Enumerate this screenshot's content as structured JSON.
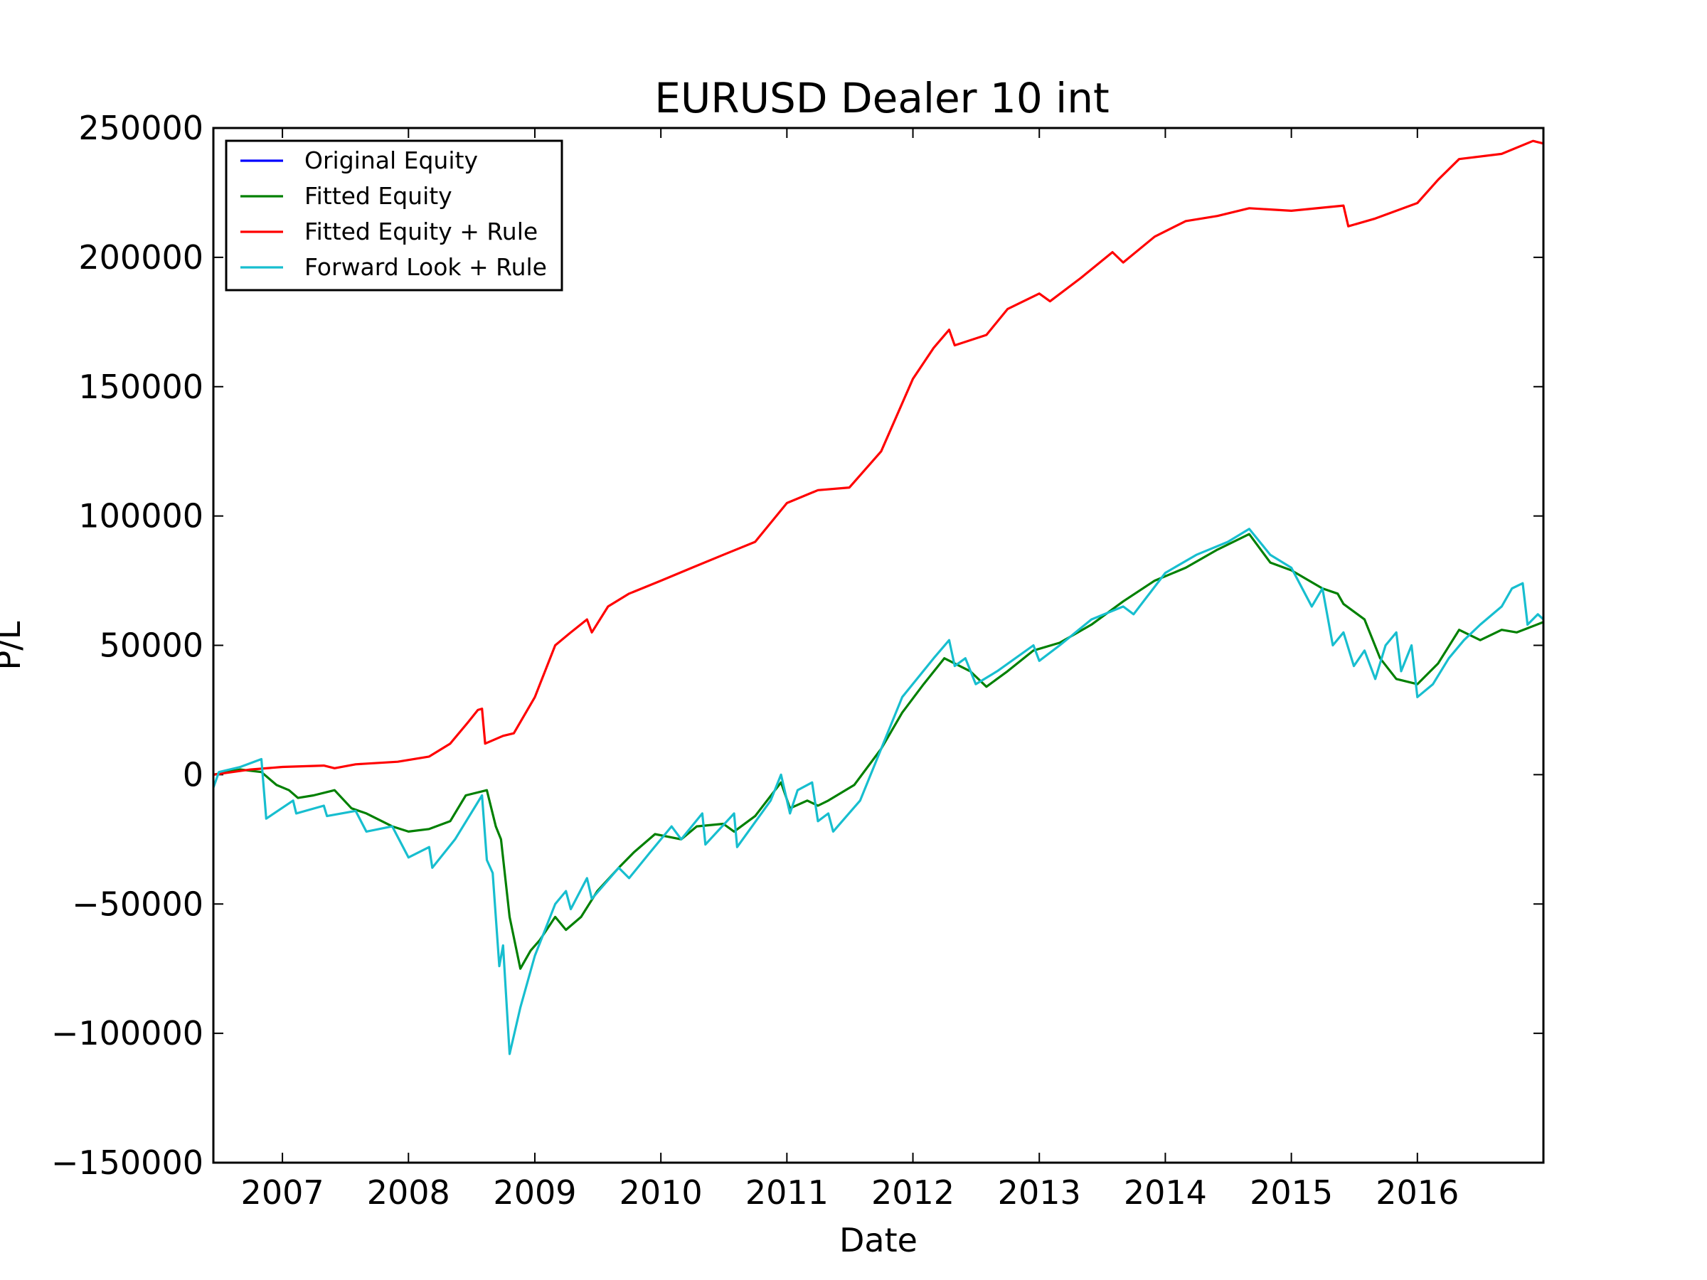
{
  "chart_data": {
    "type": "line",
    "title": "EURUSD Dealer 10 int",
    "xlabel": "Date",
    "ylabel": "P/L",
    "xlim": [
      "2006-06-15",
      "2016-12-31"
    ],
    "ylim": [
      -150000,
      250000
    ],
    "x_ticks": [
      {
        "date": "2007-01-01",
        "label": "2007"
      },
      {
        "date": "2008-01-01",
        "label": "2008"
      },
      {
        "date": "2009-01-01",
        "label": "2009"
      },
      {
        "date": "2010-01-01",
        "label": "2010"
      },
      {
        "date": "2011-01-01",
        "label": "2011"
      },
      {
        "date": "2012-01-01",
        "label": "2012"
      },
      {
        "date": "2013-01-01",
        "label": "2013"
      },
      {
        "date": "2014-01-01",
        "label": "2014"
      },
      {
        "date": "2015-01-01",
        "label": "2015"
      },
      {
        "date": "2016-01-01",
        "label": "2016"
      }
    ],
    "y_ticks": [
      {
        "value": 250000,
        "label": "250000"
      },
      {
        "value": 200000,
        "label": "200000"
      },
      {
        "value": 150000,
        "label": "150000"
      },
      {
        "value": 100000,
        "label": "100000"
      },
      {
        "value": 50000,
        "label": "50000"
      },
      {
        "value": 0,
        "label": "0"
      },
      {
        "value": -50000,
        "label": "−50000"
      },
      {
        "value": -100000,
        "label": "−100000"
      },
      {
        "value": -150000,
        "label": "−150000"
      }
    ],
    "legend": {
      "position": "top-left"
    },
    "grid": false,
    "series": [
      {
        "name": "Original Equity",
        "color": "#0000ff",
        "points": []
      },
      {
        "name": "Fitted Equity",
        "color": "#008000",
        "points": [
          [
            "2006-06-15",
            0
          ],
          [
            "2006-09-01",
            2000
          ],
          [
            "2006-11-01",
            1000
          ],
          [
            "2006-12-15",
            -4000
          ],
          [
            "2007-01-20",
            -6000
          ],
          [
            "2007-02-15",
            -9000
          ],
          [
            "2007-04-01",
            -8000
          ],
          [
            "2007-06-01",
            -6000
          ],
          [
            "2007-07-20",
            -13000
          ],
          [
            "2007-09-01",
            -15000
          ],
          [
            "2007-11-15",
            -20000
          ],
          [
            "2008-01-01",
            -22000
          ],
          [
            "2008-03-01",
            -21000
          ],
          [
            "2008-05-01",
            -18000
          ],
          [
            "2008-06-15",
            -8000
          ],
          [
            "2008-08-15",
            -6000
          ],
          [
            "2008-09-10",
            -20000
          ],
          [
            "2008-09-25",
            -25000
          ],
          [
            "2008-10-20",
            -55000
          ],
          [
            "2008-11-20",
            -75000
          ],
          [
            "2008-12-20",
            -68000
          ],
          [
            "2009-01-15",
            -64000
          ],
          [
            "2009-03-01",
            -55000
          ],
          [
            "2009-04-01",
            -60000
          ],
          [
            "2009-05-15",
            -55000
          ],
          [
            "2009-07-01",
            -45000
          ],
          [
            "2009-09-01",
            -36000
          ],
          [
            "2009-10-15",
            -30000
          ],
          [
            "2009-12-15",
            -23000
          ],
          [
            "2010-03-01",
            -25000
          ],
          [
            "2010-04-15",
            -20000
          ],
          [
            "2010-07-01",
            -19000
          ],
          [
            "2010-08-01",
            -22000
          ],
          [
            "2010-10-01",
            -16000
          ],
          [
            "2010-12-15",
            -3000
          ],
          [
            "2011-01-10",
            -13000
          ],
          [
            "2011-03-01",
            -10000
          ],
          [
            "2011-04-01",
            -12000
          ],
          [
            "2011-05-01",
            -10000
          ],
          [
            "2011-07-15",
            -4000
          ],
          [
            "2011-10-01",
            10000
          ],
          [
            "2011-12-01",
            24000
          ],
          [
            "2012-02-01",
            35000
          ],
          [
            "2012-04-01",
            45000
          ],
          [
            "2012-06-15",
            40000
          ],
          [
            "2012-08-01",
            34000
          ],
          [
            "2012-10-01",
            40000
          ],
          [
            "2012-12-15",
            48000
          ],
          [
            "2013-03-01",
            51000
          ],
          [
            "2013-06-01",
            58000
          ],
          [
            "2013-09-01",
            67000
          ],
          [
            "2013-12-01",
            75000
          ],
          [
            "2014-03-01",
            80000
          ],
          [
            "2014-06-01",
            87000
          ],
          [
            "2014-09-01",
            93000
          ],
          [
            "2014-11-01",
            82000
          ],
          [
            "2015-01-01",
            79000
          ],
          [
            "2015-04-01",
            72000
          ],
          [
            "2015-05-15",
            70000
          ],
          [
            "2015-06-01",
            66000
          ],
          [
            "2015-08-01",
            60000
          ],
          [
            "2015-09-15",
            45000
          ],
          [
            "2015-11-01",
            37000
          ],
          [
            "2016-01-01",
            35000
          ],
          [
            "2016-03-01",
            43000
          ],
          [
            "2016-05-01",
            56000
          ],
          [
            "2016-07-01",
            52000
          ],
          [
            "2016-09-01",
            56000
          ],
          [
            "2016-10-15",
            55000
          ],
          [
            "2016-12-31",
            59000
          ]
        ]
      },
      {
        "name": "Fitted Equity + Rule",
        "color": "#ff0000",
        "points": [
          [
            "2006-06-15",
            0
          ],
          [
            "2006-10-01",
            2000
          ],
          [
            "2007-01-01",
            3000
          ],
          [
            "2007-05-01",
            3500
          ],
          [
            "2007-06-01",
            2500
          ],
          [
            "2007-08-01",
            4000
          ],
          [
            "2007-12-01",
            5000
          ],
          [
            "2008-03-01",
            7000
          ],
          [
            "2008-05-01",
            12000
          ],
          [
            "2008-06-20",
            20000
          ],
          [
            "2008-07-20",
            25000
          ],
          [
            "2008-08-01",
            25500
          ],
          [
            "2008-08-10",
            12000
          ],
          [
            "2008-10-01",
            15000
          ],
          [
            "2008-11-01",
            16000
          ],
          [
            "2009-01-01",
            30000
          ],
          [
            "2009-03-01",
            50000
          ],
          [
            "2009-04-15",
            55000
          ],
          [
            "2009-06-01",
            60000
          ],
          [
            "2009-06-15",
            55000
          ],
          [
            "2009-08-01",
            65000
          ],
          [
            "2009-10-01",
            70000
          ],
          [
            "2010-01-01",
            75000
          ],
          [
            "2010-04-01",
            80000
          ],
          [
            "2010-07-01",
            85000
          ],
          [
            "2010-10-01",
            90000
          ],
          [
            "2011-01-01",
            105000
          ],
          [
            "2011-04-01",
            110000
          ],
          [
            "2011-07-01",
            111000
          ],
          [
            "2011-10-01",
            125000
          ],
          [
            "2012-01-01",
            153000
          ],
          [
            "2012-03-01",
            165000
          ],
          [
            "2012-04-15",
            172000
          ],
          [
            "2012-05-01",
            166000
          ],
          [
            "2012-08-01",
            170000
          ],
          [
            "2012-10-01",
            180000
          ],
          [
            "2013-01-01",
            186000
          ],
          [
            "2013-02-01",
            183000
          ],
          [
            "2013-05-01",
            192000
          ],
          [
            "2013-08-01",
            202000
          ],
          [
            "2013-09-01",
            198000
          ],
          [
            "2013-12-01",
            208000
          ],
          [
            "2014-03-01",
            214000
          ],
          [
            "2014-06-01",
            216000
          ],
          [
            "2014-09-01",
            219000
          ],
          [
            "2015-01-01",
            218000
          ],
          [
            "2015-06-01",
            220000
          ],
          [
            "2015-06-15",
            212000
          ],
          [
            "2015-09-01",
            215000
          ],
          [
            "2016-01-01",
            221000
          ],
          [
            "2016-03-01",
            230000
          ],
          [
            "2016-05-01",
            238000
          ],
          [
            "2016-09-01",
            240000
          ],
          [
            "2016-12-01",
            245000
          ],
          [
            "2016-12-31",
            244000
          ]
        ]
      },
      {
        "name": "Forward Look + Rule",
        "color": "#17becf",
        "points": [
          [
            "2006-06-15",
            -5000
          ],
          [
            "2006-07-01",
            1000
          ],
          [
            "2006-09-01",
            3000
          ],
          [
            "2006-11-01",
            6000
          ],
          [
            "2006-11-15",
            -17000
          ],
          [
            "2007-02-01",
            -10000
          ],
          [
            "2007-02-10",
            -15000
          ],
          [
            "2007-05-01",
            -12000
          ],
          [
            "2007-05-10",
            -16000
          ],
          [
            "2007-08-01",
            -14000
          ],
          [
            "2007-09-01",
            -22000
          ],
          [
            "2007-11-15",
            -20000
          ],
          [
            "2008-01-01",
            -32000
          ],
          [
            "2008-03-01",
            -28000
          ],
          [
            "2008-03-10",
            -36000
          ],
          [
            "2008-05-15",
            -25000
          ],
          [
            "2008-08-01",
            -8000
          ],
          [
            "2008-08-15",
            -33000
          ],
          [
            "2008-09-01",
            -38000
          ],
          [
            "2008-09-20",
            -74000
          ],
          [
            "2008-10-01",
            -66000
          ],
          [
            "2008-10-20",
            -108000
          ],
          [
            "2008-11-20",
            -90000
          ],
          [
            "2009-01-01",
            -70000
          ],
          [
            "2009-03-01",
            -50000
          ],
          [
            "2009-04-01",
            -45000
          ],
          [
            "2009-04-15",
            -52000
          ],
          [
            "2009-06-01",
            -40000
          ],
          [
            "2009-06-15",
            -48000
          ],
          [
            "2009-09-01",
            -36000
          ],
          [
            "2009-10-01",
            -40000
          ],
          [
            "2009-12-01",
            -30000
          ],
          [
            "2010-02-01",
            -20000
          ],
          [
            "2010-03-01",
            -25000
          ],
          [
            "2010-05-01",
            -15000
          ],
          [
            "2010-05-10",
            -27000
          ],
          [
            "2010-08-01",
            -15000
          ],
          [
            "2010-08-10",
            -28000
          ],
          [
            "2010-11-15",
            -10000
          ],
          [
            "2010-12-15",
            0
          ],
          [
            "2011-01-10",
            -15000
          ],
          [
            "2011-02-01",
            -6000
          ],
          [
            "2011-03-15",
            -3000
          ],
          [
            "2011-04-01",
            -18000
          ],
          [
            "2011-05-01",
            -15000
          ],
          [
            "2011-05-15",
            -22000
          ],
          [
            "2011-08-01",
            -10000
          ],
          [
            "2011-10-01",
            10000
          ],
          [
            "2011-12-01",
            30000
          ],
          [
            "2012-03-01",
            45000
          ],
          [
            "2012-04-15",
            52000
          ],
          [
            "2012-05-01",
            42000
          ],
          [
            "2012-06-01",
            45000
          ],
          [
            "2012-07-01",
            35000
          ],
          [
            "2012-09-01",
            40000
          ],
          [
            "2012-12-15",
            50000
          ],
          [
            "2013-01-01",
            44000
          ],
          [
            "2013-03-01",
            50000
          ],
          [
            "2013-06-01",
            60000
          ],
          [
            "2013-09-01",
            65000
          ],
          [
            "2013-10-01",
            62000
          ],
          [
            "2014-01-01",
            78000
          ],
          [
            "2014-04-01",
            85000
          ],
          [
            "2014-07-01",
            90000
          ],
          [
            "2014-09-01",
            95000
          ],
          [
            "2014-11-01",
            85000
          ],
          [
            "2015-01-01",
            80000
          ],
          [
            "2015-03-01",
            65000
          ],
          [
            "2015-04-01",
            72000
          ],
          [
            "2015-05-01",
            50000
          ],
          [
            "2015-06-01",
            55000
          ],
          [
            "2015-07-01",
            42000
          ],
          [
            "2015-08-01",
            48000
          ],
          [
            "2015-09-01",
            37000
          ],
          [
            "2015-10-01",
            50000
          ],
          [
            "2015-11-01",
            55000
          ],
          [
            "2015-11-15",
            40000
          ],
          [
            "2015-12-15",
            50000
          ],
          [
            "2016-01-01",
            30000
          ],
          [
            "2016-02-15",
            35000
          ],
          [
            "2016-04-01",
            45000
          ],
          [
            "2016-05-15",
            52000
          ],
          [
            "2016-07-01",
            58000
          ],
          [
            "2016-09-01",
            65000
          ],
          [
            "2016-10-01",
            72000
          ],
          [
            "2016-11-01",
            74000
          ],
          [
            "2016-11-15",
            58000
          ],
          [
            "2016-12-15",
            62000
          ],
          [
            "2016-12-31",
            60000
          ]
        ]
      }
    ]
  }
}
